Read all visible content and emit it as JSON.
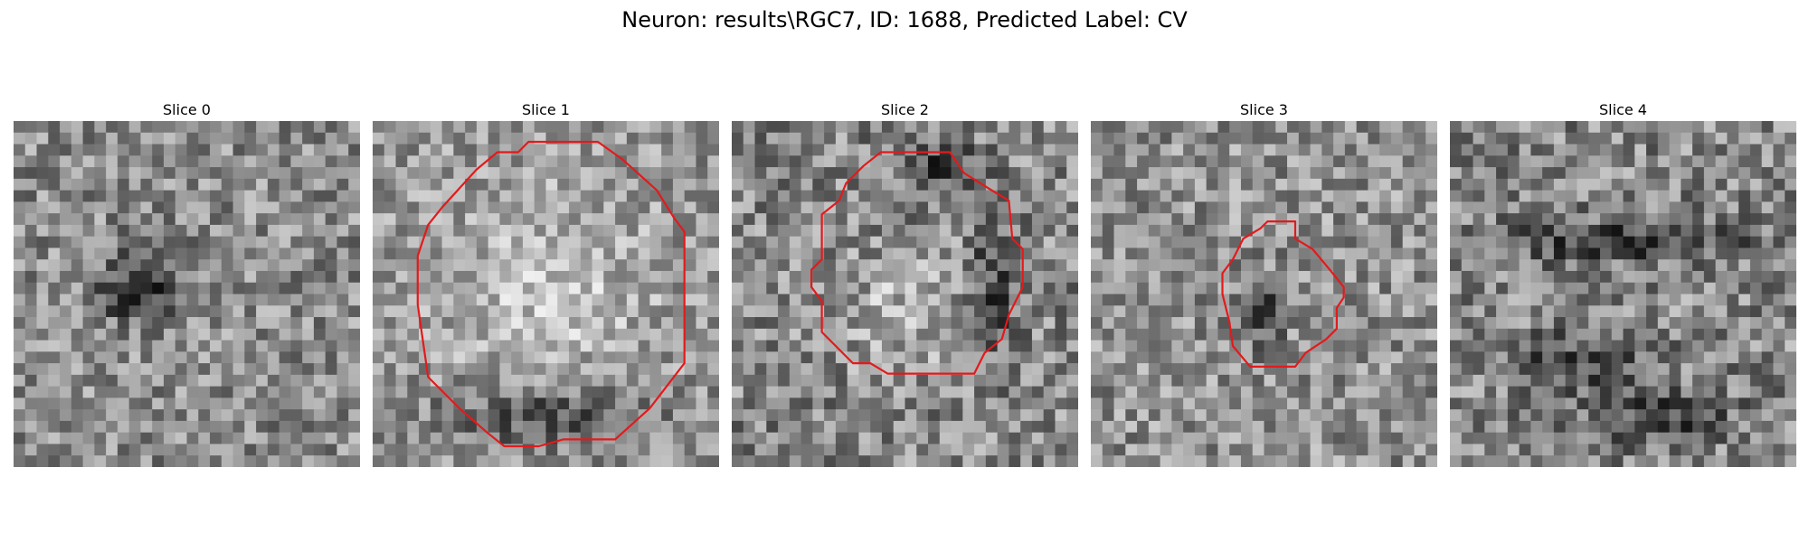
{
  "figure": {
    "title": "Neuron: results\\RGC7, ID: 1688, Predicted Label: CV"
  },
  "colors": {
    "contour": "#e31a1c",
    "background": "#ffffff"
  },
  "panels": [
    {
      "title": "Slice 0",
      "seed": 11,
      "mean": 140,
      "contrast": 60,
      "contour": [],
      "dark": [
        [
          0.4,
          0.45,
          0.1,
          0.12
        ],
        [
          0.3,
          0.5,
          0.08,
          0.06
        ]
      ]
    },
    {
      "title": "Slice 1",
      "seed": 23,
      "mean": 150,
      "contrast": 55,
      "contour": [
        [
          0.45,
          0.06
        ],
        [
          0.65,
          0.06
        ],
        [
          0.72,
          0.11
        ],
        [
          0.82,
          0.2
        ],
        [
          0.87,
          0.28
        ],
        [
          0.9,
          0.32
        ],
        [
          0.9,
          0.7
        ],
        [
          0.8,
          0.83
        ],
        [
          0.7,
          0.92
        ],
        [
          0.55,
          0.92
        ],
        [
          0.48,
          0.94
        ],
        [
          0.38,
          0.94
        ],
        [
          0.33,
          0.9
        ],
        [
          0.25,
          0.83
        ],
        [
          0.16,
          0.74
        ],
        [
          0.13,
          0.53
        ],
        [
          0.13,
          0.39
        ],
        [
          0.16,
          0.3
        ],
        [
          0.2,
          0.25
        ],
        [
          0.3,
          0.14
        ],
        [
          0.36,
          0.09
        ],
        [
          0.42,
          0.09
        ]
      ],
      "bright": [
        [
          0.5,
          0.5,
          0.3,
          0.28
        ]
      ],
      "dark": [
        [
          0.5,
          0.85,
          0.3,
          0.1
        ]
      ]
    },
    {
      "title": "Slice 2",
      "seed": 37,
      "mean": 135,
      "contrast": 65,
      "contour": [
        [
          0.43,
          0.09
        ],
        [
          0.63,
          0.09
        ],
        [
          0.67,
          0.15
        ],
        [
          0.75,
          0.2
        ],
        [
          0.8,
          0.23
        ],
        [
          0.81,
          0.34
        ],
        [
          0.84,
          0.37
        ],
        [
          0.84,
          0.48
        ],
        [
          0.8,
          0.56
        ],
        [
          0.78,
          0.63
        ],
        [
          0.73,
          0.67
        ],
        [
          0.7,
          0.73
        ],
        [
          0.45,
          0.73
        ],
        [
          0.4,
          0.7
        ],
        [
          0.35,
          0.7
        ],
        [
          0.26,
          0.61
        ],
        [
          0.26,
          0.52
        ],
        [
          0.23,
          0.48
        ],
        [
          0.23,
          0.43
        ],
        [
          0.26,
          0.4
        ],
        [
          0.26,
          0.27
        ],
        [
          0.31,
          0.23
        ],
        [
          0.33,
          0.18
        ],
        [
          0.38,
          0.13
        ]
      ],
      "bright": [
        [
          0.48,
          0.55,
          0.2,
          0.15
        ]
      ],
      "dark": [
        [
          0.6,
          0.12,
          0.12,
          0.06
        ],
        [
          0.75,
          0.5,
          0.06,
          0.18
        ]
      ]
    },
    {
      "title": "Slice 3",
      "seed": 53,
      "mean": 145,
      "contrast": 60,
      "contour": [
        [
          0.59,
          0.29
        ],
        [
          0.59,
          0.34
        ],
        [
          0.64,
          0.37
        ],
        [
          0.69,
          0.43
        ],
        [
          0.73,
          0.48
        ],
        [
          0.73,
          0.51
        ],
        [
          0.71,
          0.54
        ],
        [
          0.71,
          0.6
        ],
        [
          0.68,
          0.63
        ],
        [
          0.62,
          0.67
        ],
        [
          0.59,
          0.71
        ],
        [
          0.46,
          0.71
        ],
        [
          0.41,
          0.65
        ],
        [
          0.4,
          0.58
        ],
        [
          0.38,
          0.5
        ],
        [
          0.38,
          0.44
        ],
        [
          0.41,
          0.4
        ],
        [
          0.44,
          0.34
        ],
        [
          0.49,
          0.31
        ],
        [
          0.51,
          0.29
        ]
      ],
      "dark": [
        [
          0.5,
          0.55,
          0.06,
          0.1
        ]
      ]
    },
    {
      "title": "Slice 4",
      "seed": 71,
      "mean": 135,
      "contrast": 65,
      "contour": [],
      "dark": [
        [
          0.5,
          0.35,
          0.4,
          0.06
        ],
        [
          0.35,
          0.7,
          0.2,
          0.08
        ],
        [
          0.6,
          0.85,
          0.2,
          0.08
        ]
      ]
    }
  ]
}
